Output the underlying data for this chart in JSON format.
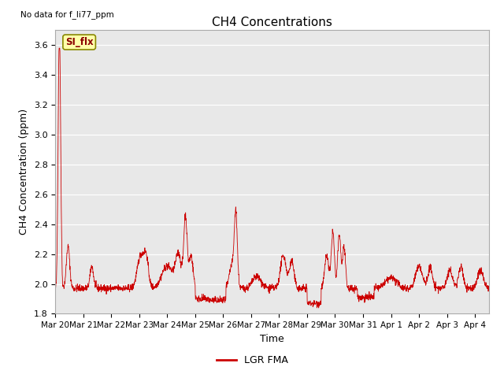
{
  "title": "CH4 Concentrations",
  "xlabel": "Time",
  "ylabel": "CH4 Concentration (ppm)",
  "top_left_text": "No data for f_li77_ppm",
  "legend_label": "LGR FMA",
  "legend_color": "#cc0000",
  "line_color": "#cc0000",
  "plot_bg_color": "#e8e8e8",
  "ylim": [
    1.8,
    3.7
  ],
  "yticks": [
    1.8,
    2.0,
    2.2,
    2.4,
    2.6,
    2.8,
    3.0,
    3.2,
    3.4,
    3.6
  ],
  "x_tick_labels": [
    "Mar 20",
    "Mar 21",
    "Mar 22",
    "Mar 23",
    "Mar 24",
    "Mar 25",
    "Mar 26",
    "Mar 27",
    "Mar 28",
    "Mar 29",
    "Mar 30",
    "Mar 31",
    "Apr 1",
    "Apr 2",
    "Apr 3",
    "Apr 4"
  ],
  "annotation_text": "SI_flx",
  "n_days": 15.5
}
